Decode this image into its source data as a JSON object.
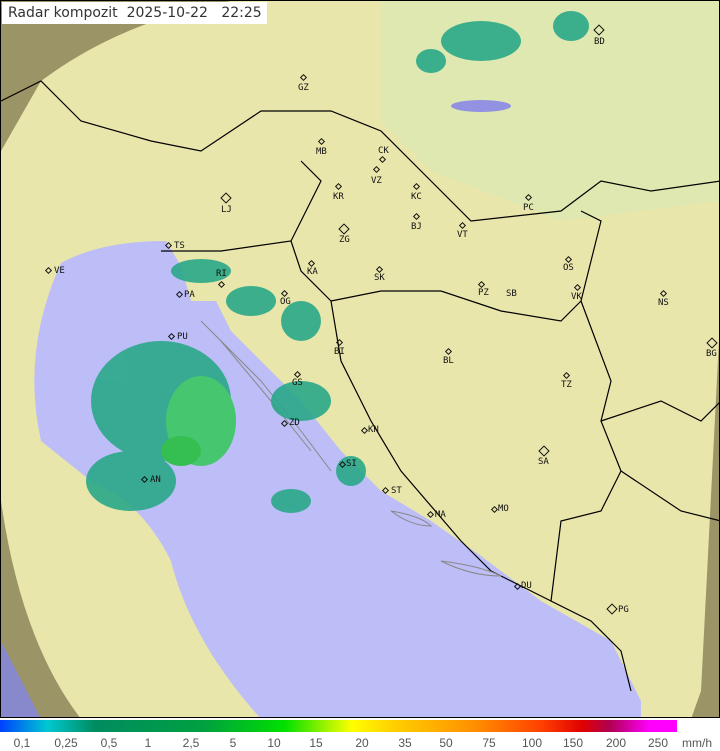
{
  "title": {
    "product": "Radar kompozit",
    "date": "2025-10-22",
    "time": "22:25"
  },
  "colors": {
    "land": "#e9e6ac",
    "sea": "#bdbdf7",
    "out_of_range": "#9b9466",
    "border": "#000000"
  },
  "cities": [
    {
      "code": "GZ",
      "type": "small"
    },
    {
      "code": "BD",
      "type": "big"
    },
    {
      "code": "MB",
      "type": "small"
    },
    {
      "code": "CK",
      "type": "small"
    },
    {
      "code": "VZ",
      "type": "small"
    },
    {
      "code": "KR",
      "type": "small"
    },
    {
      "code": "KC",
      "type": "small"
    },
    {
      "code": "PC",
      "type": "small"
    },
    {
      "code": "LJ",
      "type": "big"
    },
    {
      "code": "ZG",
      "type": "big"
    },
    {
      "code": "BJ",
      "type": "small"
    },
    {
      "code": "VT",
      "type": "small"
    },
    {
      "code": "TS",
      "type": "small"
    },
    {
      "code": "VE",
      "type": "small"
    },
    {
      "code": "RI",
      "type": "small"
    },
    {
      "code": "KA",
      "type": "small"
    },
    {
      "code": "SK",
      "type": "small"
    },
    {
      "code": "OS",
      "type": "small"
    },
    {
      "code": "PA",
      "type": "small"
    },
    {
      "code": "PZ",
      "type": "small"
    },
    {
      "code": "SB",
      "type": "none"
    },
    {
      "code": "VK",
      "type": "small"
    },
    {
      "code": "NS",
      "type": "small"
    },
    {
      "code": "OG",
      "type": "small"
    },
    {
      "code": "PU",
      "type": "small"
    },
    {
      "code": "BI",
      "type": "small"
    },
    {
      "code": "BL",
      "type": "small"
    },
    {
      "code": "BG",
      "type": "big"
    },
    {
      "code": "GS",
      "type": "small"
    },
    {
      "code": "TZ",
      "type": "small"
    },
    {
      "code": "ZD",
      "type": "small"
    },
    {
      "code": "KN",
      "type": "small"
    },
    {
      "code": "SA",
      "type": "big"
    },
    {
      "code": "AN",
      "type": "small"
    },
    {
      "code": "SI",
      "type": "small"
    },
    {
      "code": "ST",
      "type": "small"
    },
    {
      "code": "MA",
      "type": "small"
    },
    {
      "code": "MO",
      "type": "small"
    },
    {
      "code": "DU",
      "type": "small"
    },
    {
      "code": "PG",
      "type": "big"
    }
  ],
  "legend": {
    "unit": "mm/h",
    "ticks": [
      "0,1",
      "0,25",
      "0,5",
      "1",
      "2,5",
      "5",
      "10",
      "15",
      "20",
      "35",
      "50",
      "75",
      "100",
      "150",
      "200",
      "250"
    ]
  }
}
